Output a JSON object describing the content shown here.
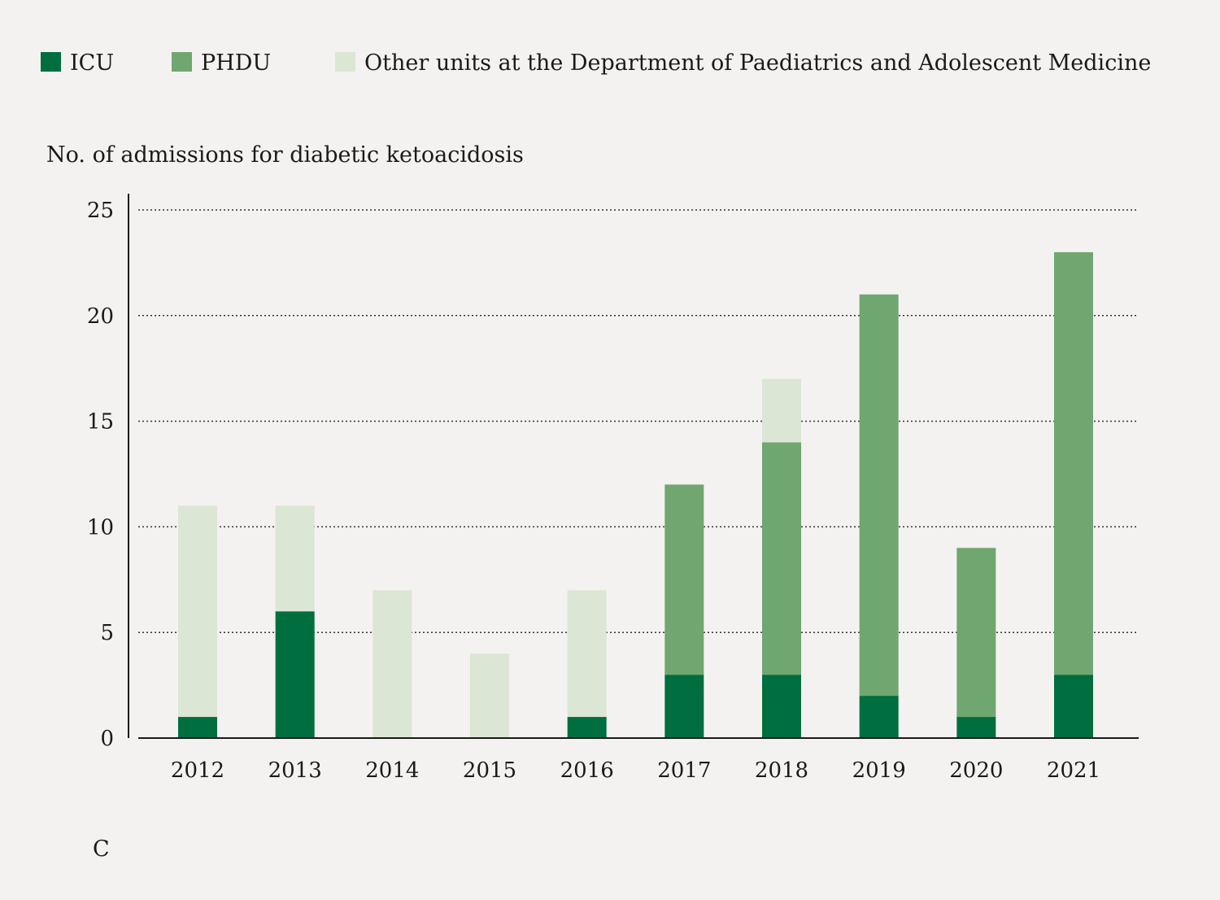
{
  "chart_data": {
    "type": "bar",
    "stacked": true,
    "title": "",
    "xlabel": "",
    "ylabel": "No. of admissions for diabetic ketoacidosis",
    "ylim": [
      0,
      25
    ],
    "yticks": [
      0,
      5,
      10,
      15,
      20,
      25
    ],
    "grid": "horizontal dotted",
    "legend_position": "top",
    "categories": [
      "2012",
      "2013",
      "2014",
      "2015",
      "2016",
      "2017",
      "2018",
      "2019",
      "2020",
      "2021"
    ],
    "series": [
      {
        "name": "ICU",
        "color": "#006e3f",
        "values": [
          1,
          6,
          0,
          0,
          1,
          3,
          3,
          2,
          1,
          3
        ]
      },
      {
        "name": "PHDU",
        "color": "#70a670",
        "values": [
          0,
          0,
          0,
          0,
          0,
          9,
          11,
          19,
          8,
          20
        ]
      },
      {
        "name": "Other units at the Department of Paediatrics and Adolescent Medicine",
        "color": "#dbe6d4",
        "values": [
          10,
          5,
          7,
          4,
          6,
          0,
          3,
          0,
          0,
          0
        ]
      }
    ],
    "panel_label": "C"
  }
}
